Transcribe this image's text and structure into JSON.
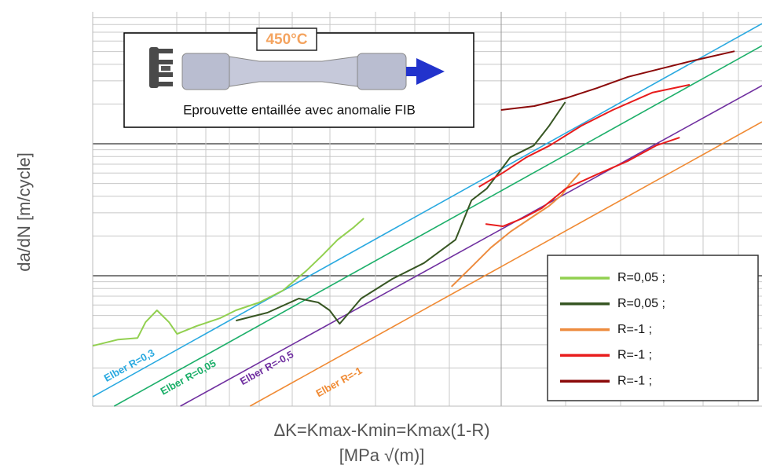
{
  "chart_data": {
    "type": "line",
    "x_label": "ΔK=Kmax-Kmin=Kmax(1-R)",
    "x_unit": "[MPa √(m)]",
    "y_label": "da/dN  [m/cycle]",
    "inset_temperature": "450°C",
    "inset_caption": "Eprouvette entaillée avec anomalie FIB",
    "xlim": [
      0,
      100
    ],
    "ylim": [
      0,
      100
    ],
    "grid": true,
    "series": [
      {
        "name": "R=0,05 ;",
        "color": "#92d050",
        "x": [
          0,
          3.8,
          6.7,
          7.9,
          9.6,
          11.4,
          12.6,
          15.5,
          19.0,
          21.4,
          24.9,
          28.4,
          31.9,
          34.3,
          36.6,
          38.9,
          40.5
        ],
        "values": [
          15.3,
          16.9,
          17.3,
          21.3,
          24.3,
          21.3,
          18.3,
          20.3,
          22.3,
          24.3,
          26.3,
          29.3,
          34.3,
          38.2,
          42.2,
          45.2,
          47.6
        ]
      },
      {
        "name": "R=0,05 ;",
        "color": "#375623",
        "x": [
          21.4,
          26.1,
          30.8,
          33.7,
          35.4,
          36.9,
          40.1,
          44.8,
          49.5,
          54.2,
          56.6,
          58.9,
          62.4,
          65.9,
          68.2,
          70.6
        ],
        "values": [
          21.7,
          23.7,
          27.3,
          26.3,
          24.3,
          20.9,
          27.3,
          32.3,
          36.3,
          42.2,
          52.2,
          55.2,
          63.1,
          66.1,
          71.1,
          77.1
        ]
      },
      {
        "name": "R=-1 ;",
        "color": "#ed8c3f",
        "x": [
          53.6,
          56.6,
          59.5,
          62.4,
          65.9,
          68.2,
          70.1,
          71.2,
          72.8
        ],
        "values": [
          30.3,
          35.3,
          40.2,
          44.2,
          48.2,
          50.8,
          53.6,
          56.2,
          59.2
        ]
      },
      {
        "name": "R=-1 ;",
        "color": "#e81c1c",
        "x": [
          57.7,
          61.3,
          64.8,
          68.3,
          73.0,
          77.7,
          83.6,
          89.2,
          null,
          58.7,
          61.3,
          64.2,
          67.1,
          70.7,
          75.4,
          80.0,
          84.2,
          87.7
        ],
        "values": [
          55.6,
          59.2,
          63.1,
          66.1,
          71.1,
          75.1,
          79.5,
          81.5,
          null,
          46.2,
          45.6,
          47.6,
          50.2,
          55.2,
          58.8,
          62.2,
          66.1,
          68.1
        ]
      },
      {
        "name": "R=-1 ;",
        "color": "#8b0a0a",
        "x": [
          61.0,
          66.0,
          70.7,
          75.4,
          80.0,
          84.7,
          89.4,
          95.9
        ],
        "values": [
          75.1,
          76.1,
          78.1,
          80.7,
          83.5,
          85.5,
          87.5,
          90.0
        ]
      }
    ],
    "elber_lines": [
      {
        "label": "Elber R=0,3",
        "color": "#29a9e0",
        "x": [
          0,
          100
        ],
        "values": [
          2.4,
          97.0
        ]
      },
      {
        "label": "Elber R=0,05",
        "color": "#1daf6a",
        "x": [
          3.2,
          100
        ],
        "values": [
          0,
          91.4
        ]
      },
      {
        "label": "Elber R=-0,5",
        "color": "#7030a0",
        "x": [
          13.1,
          100
        ],
        "values": [
          0,
          81.3
        ]
      },
      {
        "label": "Elber R=-1",
        "color": "#f08a33",
        "x": [
          23.5,
          100
        ],
        "values": [
          0,
          72.1
        ]
      }
    ]
  }
}
